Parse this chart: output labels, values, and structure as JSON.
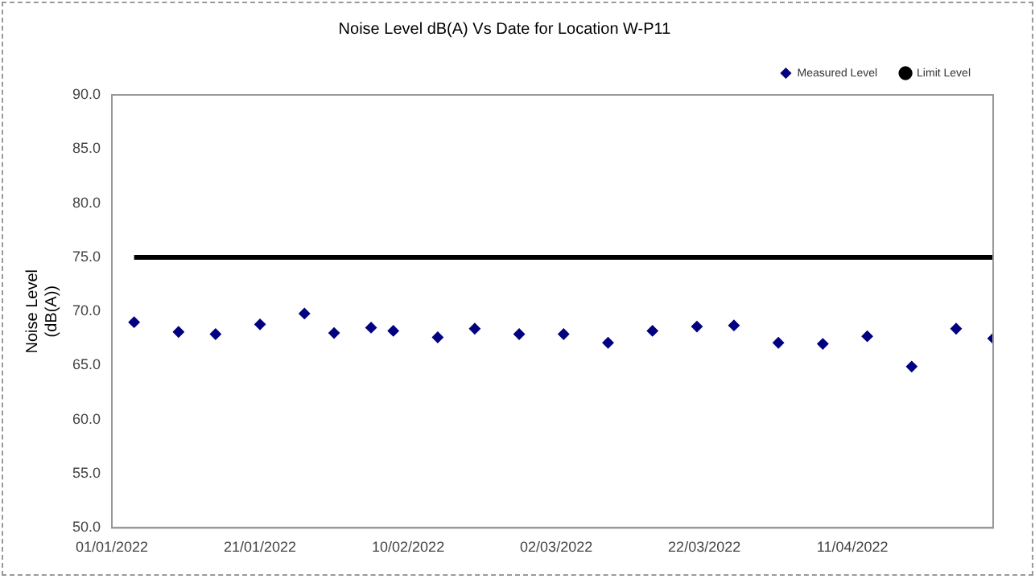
{
  "chart_data": {
    "type": "scatter",
    "title": "Noise Level dB(A) Vs Date for Location W-P11",
    "ylabel": "Noise Level (dB(A))",
    "x": [
      "2022-01-04",
      "2022-01-10",
      "2022-01-15",
      "2022-01-21",
      "2022-01-27",
      "2022-01-31",
      "2022-02-05",
      "2022-02-08",
      "2022-02-14",
      "2022-02-19",
      "2022-02-25",
      "2022-03-03",
      "2022-03-09",
      "2022-03-15",
      "2022-03-21",
      "2022-03-26",
      "2022-04-01",
      "2022-04-07",
      "2022-04-13",
      "2022-04-19",
      "2022-04-25",
      "2022-04-30"
    ],
    "series": [
      {
        "name": "Measured Level",
        "color": "#000080",
        "marker": "diamond",
        "values": [
          69.0,
          68.1,
          67.9,
          68.8,
          69.8,
          68.0,
          68.5,
          68.2,
          67.6,
          68.4,
          67.9,
          67.9,
          67.1,
          68.2,
          68.6,
          68.7,
          67.1,
          67.0,
          67.7,
          64.9,
          68.4,
          67.5
        ]
      },
      {
        "name": "Limit Level",
        "type": "line",
        "color": "#000000",
        "marker": "none",
        "line_style": "solid",
        "x": [
          "2022-01-04",
          "2022-04-30"
        ],
        "values": [
          75.0,
          75.0
        ]
      }
    ],
    "xlim": [
      "2022-01-01",
      "2022-04-30"
    ],
    "xticks": [
      {
        "value": "2022-01-01",
        "label": "01/01/2022"
      },
      {
        "value": "2022-01-21",
        "label": "21/01/2022"
      },
      {
        "value": "2022-02-10",
        "label": "10/02/2022"
      },
      {
        "value": "2022-03-02",
        "label": "02/03/2022"
      },
      {
        "value": "2022-03-22",
        "label": "22/03/2022"
      },
      {
        "value": "2022-04-11",
        "label": "11/04/2022"
      }
    ],
    "ylim": [
      50,
      90
    ],
    "yticks": [
      {
        "value": 50,
        "label": "50.0"
      },
      {
        "value": 55,
        "label": "55.0"
      },
      {
        "value": 60,
        "label": "60.0"
      },
      {
        "value": 65,
        "label": "65.0"
      },
      {
        "value": 70,
        "label": "70.0"
      },
      {
        "value": 75,
        "label": "75.0"
      },
      {
        "value": 80,
        "label": "80.0"
      },
      {
        "value": 85,
        "label": "85.0"
      },
      {
        "value": 90,
        "label": "90.0"
      }
    ],
    "grid": false,
    "legend": "top right"
  }
}
